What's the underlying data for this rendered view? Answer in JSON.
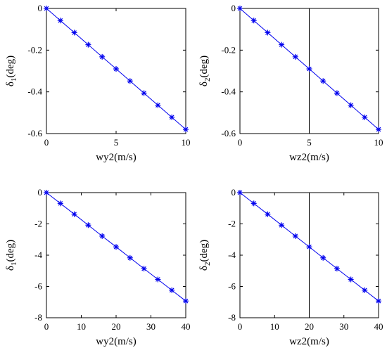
{
  "chart_data": [
    {
      "type": "line",
      "x": [
        0,
        1,
        2,
        3,
        4,
        5,
        6,
        7,
        8,
        9,
        10
      ],
      "series": [
        {
          "values": [
            0,
            -0.058,
            -0.116,
            -0.174,
            -0.232,
            -0.29,
            -0.348,
            -0.406,
            -0.464,
            -0.522,
            -0.58
          ]
        }
      ],
      "xlabel": "wy2(m/s)",
      "ylabel": {
        "main": "δ",
        "sub": "1",
        "rest": "(deg)"
      },
      "xlim": [
        0,
        10
      ],
      "ylim": [
        -0.6,
        0
      ],
      "xticks": [
        0,
        5,
        10
      ],
      "yticks": [
        0,
        -0.2,
        -0.4,
        -0.6
      ],
      "xticklabels": [
        "0",
        "5",
        "10"
      ],
      "yticklabels": [
        "0",
        "-0.2",
        "-0.4",
        "-0.6"
      ],
      "vline": null,
      "grid": false
    },
    {
      "type": "line",
      "x": [
        0,
        1,
        2,
        3,
        4,
        5,
        6,
        7,
        8,
        9,
        10
      ],
      "series": [
        {
          "values": [
            0,
            -0.058,
            -0.116,
            -0.174,
            -0.232,
            -0.29,
            -0.348,
            -0.406,
            -0.464,
            -0.522,
            -0.58
          ]
        }
      ],
      "xlabel": "wz2(m/s)",
      "ylabel": {
        "main": "δ",
        "sub": "2",
        "rest": "(deg)"
      },
      "xlim": [
        0,
        10
      ],
      "ylim": [
        -0.6,
        0
      ],
      "xticks": [
        0,
        5,
        10
      ],
      "yticks": [
        0,
        -0.2,
        -0.4,
        -0.6
      ],
      "xticklabels": [
        "0",
        "5",
        "10"
      ],
      "yticklabels": [
        "0",
        "-0.2",
        "-0.4",
        "-0.6"
      ],
      "vline": 5,
      "grid": false
    },
    {
      "type": "line",
      "x": [
        0,
        4,
        8,
        12,
        16,
        20,
        24,
        28,
        32,
        36,
        40
      ],
      "series": [
        {
          "values": [
            0,
            -0.69,
            -1.38,
            -2.08,
            -2.78,
            -3.47,
            -4.17,
            -4.86,
            -5.55,
            -6.24,
            -6.93
          ]
        }
      ],
      "xlabel": "wy2(m/s)",
      "ylabel": {
        "main": "δ",
        "sub": "1",
        "rest": "(deg)"
      },
      "xlim": [
        0,
        40
      ],
      "ylim": [
        -8,
        0
      ],
      "xticks": [
        0,
        10,
        20,
        30,
        40
      ],
      "yticks": [
        0,
        -2,
        -4,
        -6,
        -8
      ],
      "xticklabels": [
        "0",
        "10",
        "20",
        "30",
        "40"
      ],
      "yticklabels": [
        "0",
        "-2",
        "-4",
        "-6",
        "-8"
      ],
      "vline": null,
      "grid": false
    },
    {
      "type": "line",
      "x": [
        0,
        4,
        8,
        12,
        16,
        20,
        24,
        28,
        32,
        36,
        40
      ],
      "series": [
        {
          "values": [
            0,
            -0.69,
            -1.38,
            -2.08,
            -2.78,
            -3.47,
            -4.17,
            -4.86,
            -5.55,
            -6.24,
            -6.93
          ]
        }
      ],
      "xlabel": "wz2(m/s)",
      "ylabel": {
        "main": "δ",
        "sub": "2",
        "rest": "(deg)"
      },
      "xlim": [
        0,
        40
      ],
      "ylim": [
        -8,
        0
      ],
      "xticks": [
        0,
        10,
        20,
        30,
        40
      ],
      "yticks": [
        0,
        -2,
        -4,
        -6,
        -8
      ],
      "xticklabels": [
        "0",
        "10",
        "20",
        "30",
        "40"
      ],
      "yticklabels": [
        "0",
        "-2",
        "-4",
        "-6",
        "-8"
      ],
      "vline": 20,
      "grid": false
    }
  ],
  "colors": {
    "series": "#0000ee",
    "axes": "#000000"
  }
}
